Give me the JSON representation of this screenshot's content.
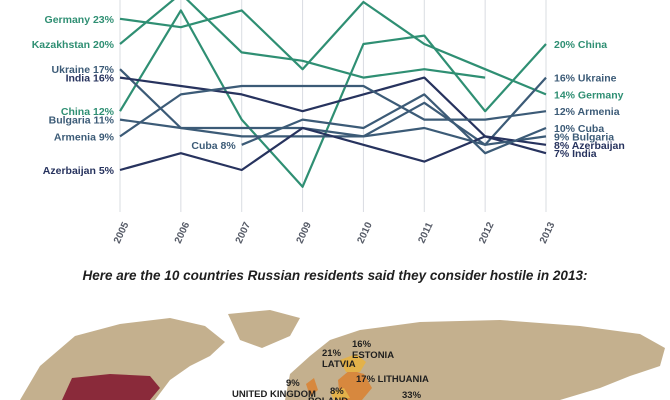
{
  "colors": {
    "green": "#2f8f73",
    "navy": "#27335e",
    "slate": "#3c5b77",
    "grid": "#d9dce2",
    "land": "#c4b08e",
    "ocean": "#ffffff",
    "usa": "#8a2a3a",
    "europe_orange": "#d7883e",
    "europe_yellow": "#e3b24a"
  },
  "chart_data": {
    "type": "line",
    "x": [
      "2005",
      "2006",
      "2007",
      "2009",
      "2010",
      "2011",
      "2012",
      "2013"
    ],
    "ylim": [
      0,
      25
    ],
    "grid": "vertical",
    "series": [
      {
        "name": "Germany",
        "color": "#2f8f73",
        "values": [
          23,
          22,
          24,
          17,
          25,
          20,
          17,
          14
        ],
        "start_label": "Germany 23%",
        "end_label": "14% Germany"
      },
      {
        "name": "Kazakhstan",
        "color": "#2f8f73",
        "values": [
          20,
          26,
          19,
          18,
          16,
          17,
          16,
          null
        ],
        "start_label": "Kazakhstan 20%",
        "end_label": ""
      },
      {
        "name": "China",
        "color": "#2f8f73",
        "values": [
          12,
          24,
          11,
          3,
          20,
          21,
          12,
          20
        ],
        "start_label": "China 12%",
        "end_label": "20% China"
      },
      {
        "name": "Ukraine",
        "color": "#3c5b77",
        "values": [
          17,
          10,
          10,
          10,
          9,
          13,
          8,
          16
        ],
        "start_label": "Ukraine 17%",
        "end_label": "16% Ukraine"
      },
      {
        "name": "India",
        "color": "#27335e",
        "values": [
          16,
          15,
          14,
          12,
          14,
          16,
          9,
          7
        ],
        "start_label": "India 16%",
        "end_label": "7% India"
      },
      {
        "name": "Bulgaria",
        "color": "#3c5b77",
        "values": [
          11,
          10,
          9,
          9,
          9,
          10,
          8,
          9
        ],
        "start_label": "Bulgaria 11%",
        "end_label": "9% Bulgaria"
      },
      {
        "name": "Armenia",
        "color": "#3c5b77",
        "values": [
          9,
          14,
          15,
          15,
          15,
          11,
          11,
          12
        ],
        "start_label": "Armenia 9%",
        "end_label": "12% Armenia"
      },
      {
        "name": "Azerbaijan",
        "color": "#27335e",
        "values": [
          5,
          7,
          5,
          10,
          8,
          6,
          9,
          8
        ],
        "start_label": "Azerbaijan 5%",
        "end_label": "8% Azerbaijan"
      },
      {
        "name": "Cuba",
        "color": "#3c5b77",
        "values": [
          null,
          null,
          8,
          11,
          10,
          14,
          7,
          10
        ],
        "start_label": "Cuba 8%",
        "end_label": "10% Cuba"
      }
    ]
  },
  "subtitle": "Here are the 10 countries Russian residents said they consider hostile in 2013:",
  "map": {
    "labels": [
      {
        "id": "latvia",
        "text": "21%\nLATVIA"
      },
      {
        "id": "estonia",
        "text": "16%\nESTONIA"
      },
      {
        "id": "lithuania",
        "text": "17% LITHUANIA"
      },
      {
        "id": "uk",
        "text": "9%\nUNITED KINGDOM"
      },
      {
        "id": "poland",
        "text": "8%\nPOLAND"
      },
      {
        "id": "other",
        "text": "33%"
      }
    ]
  }
}
